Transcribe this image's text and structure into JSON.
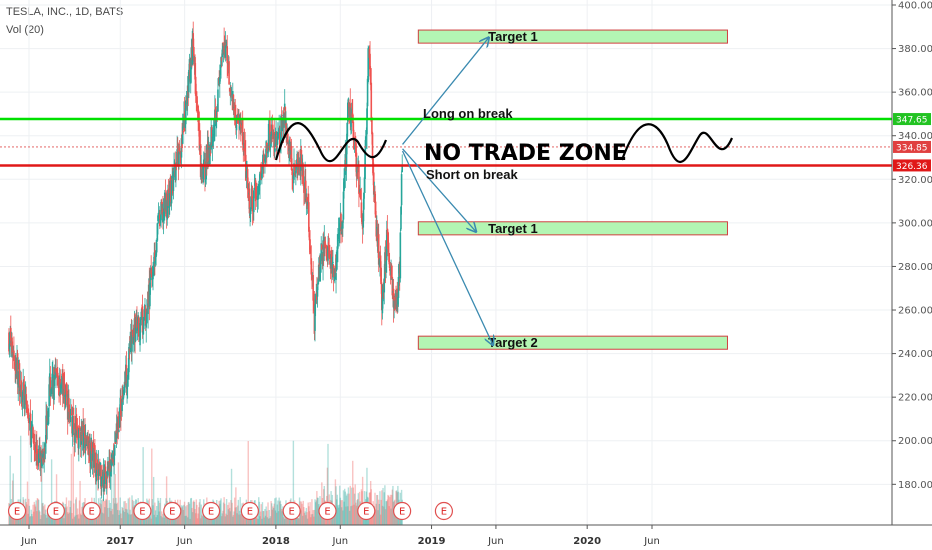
{
  "header": {
    "title": "TESLA, INC., 1D, BATS",
    "volume_label": "Vol (20)"
  },
  "colors": {
    "bull": "#26a69a",
    "bear": "#ef5350",
    "long_line": "#00e000",
    "short_line": "#e01818",
    "target_fill": "#b3f5b3",
    "target_border": "#d04040",
    "arrow": "#3a8ab0",
    "earnings": "#e05050"
  },
  "chart_data": {
    "type": "candlestick",
    "y_range": [
      165,
      400
    ],
    "y_ticks": [
      180,
      200,
      220,
      240,
      260,
      280,
      300,
      320,
      340,
      360,
      380,
      400
    ],
    "y_tick_labels": [
      "180.00",
      "200.00",
      "220.00",
      "240.00",
      "260.00",
      "280.00",
      "300.00",
      "320.00",
      "340.00",
      "360.00",
      "380.00",
      "400.00"
    ],
    "x_ticks": [
      {
        "label": "Jun",
        "date": "2016-06-01",
        "bold": false
      },
      {
        "label": "2017",
        "date": "2017-01-01",
        "bold": true
      },
      {
        "label": "Jun",
        "date": "2017-06-01",
        "bold": false
      },
      {
        "label": "2018",
        "date": "2018-01-01",
        "bold": true
      },
      {
        "label": "Jun",
        "date": "2018-06-01",
        "bold": false
      },
      {
        "label": "2019",
        "date": "2019-01-01",
        "bold": true
      },
      {
        "label": "Jun",
        "date": "2019-06-01",
        "bold": false
      },
      {
        "label": "2020",
        "date": "2020-01-01",
        "bold": true
      },
      {
        "label": "Jun",
        "date": "2020-06-01",
        "bold": false
      }
    ],
    "price_path": [
      [
        "2016-04-15",
        248
      ],
      [
        "2016-05-20",
        220
      ],
      [
        "2016-06-10",
        200
      ],
      [
        "2016-07-01",
        188
      ],
      [
        "2016-07-20",
        225
      ],
      [
        "2016-08-15",
        228
      ],
      [
        "2016-09-15",
        205
      ],
      [
        "2016-10-15",
        200
      ],
      [
        "2016-11-15",
        185
      ],
      [
        "2016-12-05",
        183
      ],
      [
        "2016-12-31",
        213
      ],
      [
        "2017-02-01",
        250
      ],
      [
        "2017-03-01",
        255
      ],
      [
        "2017-04-01",
        300
      ],
      [
        "2017-05-01",
        315
      ],
      [
        "2017-06-01",
        345
      ],
      [
        "2017-06-20",
        385
      ],
      [
        "2017-07-10",
        320
      ],
      [
        "2017-07-25",
        330
      ],
      [
        "2017-08-15",
        355
      ],
      [
        "2017-09-05",
        385
      ],
      [
        "2017-09-20",
        355
      ],
      [
        "2017-10-15",
        340
      ],
      [
        "2017-11-01",
        305
      ],
      [
        "2017-11-20",
        315
      ],
      [
        "2017-12-15",
        340
      ],
      [
        "2018-01-05",
        335
      ],
      [
        "2018-01-20",
        350
      ],
      [
        "2018-02-10",
        325
      ],
      [
        "2018-03-01",
        330
      ],
      [
        "2018-03-20",
        300
      ],
      [
        "2018-04-01",
        255
      ],
      [
        "2018-04-15",
        285
      ],
      [
        "2018-05-01",
        290
      ],
      [
        "2018-05-20",
        280
      ],
      [
        "2018-06-05",
        300
      ],
      [
        "2018-06-20",
        355
      ],
      [
        "2018-07-05",
        335
      ],
      [
        "2018-07-25",
        300
      ],
      [
        "2018-08-07",
        385
      ],
      [
        "2018-08-20",
        310
      ],
      [
        "2018-09-07",
        265
      ],
      [
        "2018-09-20",
        295
      ],
      [
        "2018-10-08",
        260
      ],
      [
        "2018-10-18",
        275
      ],
      [
        "2018-10-25",
        335
      ]
    ],
    "earnings_dates": [
      "2016-05-04",
      "2016-08-03",
      "2016-10-26",
      "2017-02-22",
      "2017-05-03",
      "2017-08-02",
      "2017-11-01",
      "2018-02-07",
      "2018-05-02",
      "2018-08-01",
      "2018-10-24",
      "2019-01-30"
    ],
    "levels": [
      {
        "name": "long_line",
        "price": 347.65,
        "tag": "347.65"
      },
      {
        "name": "last_price",
        "price": 334.85,
        "tag": "334.85"
      },
      {
        "name": "short_line",
        "price": 326.36,
        "tag": "326.36"
      }
    ],
    "targets": [
      {
        "label": "Target 1",
        "price_top": 388.5,
        "price_bottom": 382.5,
        "date_from": "2018-12-01",
        "date_to": "2020-11-25"
      },
      {
        "label": "Target 1",
        "price_top": 300.5,
        "price_bottom": 294.5,
        "date_from": "2018-12-01",
        "date_to": "2020-11-25"
      },
      {
        "label": "Target 2",
        "price_top": 248.0,
        "price_bottom": 242.0,
        "date_from": "2018-12-01",
        "date_to": "2020-11-25"
      }
    ],
    "arrows": [
      {
        "from": [
          "2018-10-25",
          336
        ],
        "to": [
          "2019-05-15",
          385
        ]
      },
      {
        "from": [
          "2018-10-25",
          334
        ],
        "to": [
          "2019-04-15",
          296
        ]
      },
      {
        "from": [
          "2018-10-25",
          333
        ],
        "to": [
          "2019-05-25",
          244
        ]
      }
    ],
    "annotations": {
      "long": "Long on break",
      "short": "Short on break",
      "zone": "NO TRADE ZONE"
    }
  }
}
